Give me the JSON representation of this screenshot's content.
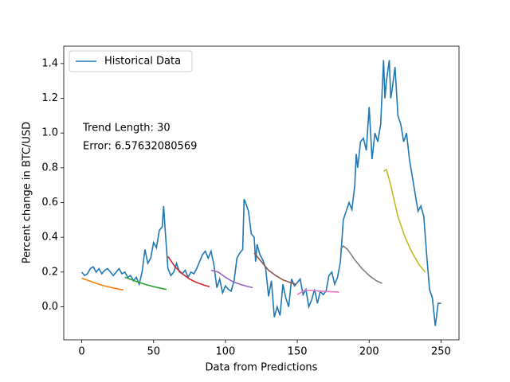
{
  "chart_data": {
    "type": "line",
    "xlabel": "Data from Predictions",
    "ylabel": "Percent change in BTC/USD",
    "annotations": [
      "Trend Length: 30",
      "Error: 6.57632080569"
    ],
    "xlim": [
      -12.5,
      262.5
    ],
    "ylim": [
      -0.19,
      1.5
    ],
    "xticks": [
      0,
      50,
      100,
      150,
      200,
      250
    ],
    "yticks": [
      {
        "value": 0,
        "label": "0.0"
      },
      0.2,
      0.4,
      0.6,
      0.8,
      {
        "value": 1,
        "label": "1.0"
      },
      1.2,
      1.4
    ],
    "legend": "upper left",
    "series": [
      {
        "name": "Historical Data",
        "color": "#1f77b4",
        "x": [
          0,
          2,
          4,
          6,
          8,
          10,
          12,
          14,
          16,
          18,
          20,
          22,
          24,
          26,
          28,
          30,
          32,
          34,
          36,
          38,
          40,
          42,
          44,
          46,
          48,
          50,
          52,
          54,
          56,
          57,
          58,
          60,
          62,
          64,
          66,
          68,
          70,
          72,
          74,
          76,
          78,
          80,
          82,
          84,
          86,
          88,
          90,
          92,
          94,
          96,
          98,
          100,
          102,
          104,
          106,
          108,
          110,
          112,
          113,
          114,
          116,
          118,
          120,
          121,
          122,
          124,
          126,
          128,
          130,
          132,
          134,
          136,
          138,
          140,
          142,
          144,
          146,
          148,
          150,
          152,
          154,
          156,
          158,
          160,
          162,
          164,
          166,
          168,
          170,
          172,
          174,
          176,
          178,
          180,
          182,
          184,
          186,
          188,
          190,
          191,
          192,
          194,
          196,
          198,
          200,
          202,
          204,
          206,
          208,
          210,
          211,
          212,
          214,
          215,
          216,
          218,
          220,
          222,
          224,
          226,
          228,
          230,
          232,
          234,
          236,
          238,
          240,
          242,
          244,
          246,
          248,
          250
        ],
        "values": [
          0.2,
          0.18,
          0.19,
          0.22,
          0.23,
          0.2,
          0.22,
          0.19,
          0.21,
          0.22,
          0.2,
          0.18,
          0.2,
          0.22,
          0.19,
          0.2,
          0.17,
          0.18,
          0.15,
          0.17,
          0.13,
          0.2,
          0.33,
          0.25,
          0.28,
          0.37,
          0.34,
          0.44,
          0.46,
          0.58,
          0.45,
          0.22,
          0.18,
          0.2,
          0.25,
          0.2,
          0.19,
          0.21,
          0.17,
          0.2,
          0.19,
          0.22,
          0.26,
          0.3,
          0.32,
          0.28,
          0.32,
          0.24,
          0.11,
          0.16,
          0.08,
          0.12,
          0.1,
          0.09,
          0.15,
          0.28,
          0.31,
          0.33,
          0.62,
          0.6,
          0.55,
          0.42,
          0.4,
          0.26,
          0.36,
          0.3,
          0.27,
          0.22,
          0.06,
          0.15,
          -0.06,
          0.0,
          -0.05,
          0.13,
          0.05,
          0.0,
          0.16,
          0.12,
          0.14,
          0.16,
          0.07,
          0.1,
          0.0,
          0.04,
          0.1,
          0.02,
          0.09,
          0.07,
          0.09,
          0.18,
          0.2,
          0.13,
          0.17,
          0.26,
          0.5,
          0.55,
          0.6,
          0.56,
          0.7,
          0.88,
          0.8,
          0.95,
          0.97,
          0.9,
          1.15,
          0.85,
          1.0,
          0.95,
          1.05,
          1.42,
          1.2,
          1.3,
          1.42,
          1.2,
          1.25,
          1.38,
          1.1,
          1.05,
          0.95,
          1.0,
          0.85,
          0.75,
          0.65,
          0.55,
          0.58,
          0.52,
          0.3,
          0.1,
          0.05,
          -0.11,
          0.02,
          0.02
        ]
      },
      {
        "color": "#ff7f0e",
        "x": [
          0,
          5,
          10,
          15,
          20,
          25,
          29
        ],
        "values": [
          0.165,
          0.15,
          0.135,
          0.122,
          0.112,
          0.103,
          0.097
        ]
      },
      {
        "color": "#2ca02c",
        "x": [
          30,
          35,
          40,
          45,
          50,
          55,
          59
        ],
        "values": [
          0.17,
          0.155,
          0.14,
          0.127,
          0.116,
          0.107,
          0.1
        ]
      },
      {
        "color": "#d62728",
        "x": [
          60,
          65,
          70,
          75,
          80,
          85,
          89
        ],
        "values": [
          0.29,
          0.23,
          0.19,
          0.16,
          0.14,
          0.125,
          0.115
        ]
      },
      {
        "color": "#9467bd",
        "x": [
          90,
          95,
          100,
          105,
          110,
          115,
          119
        ],
        "values": [
          0.21,
          0.2,
          0.17,
          0.145,
          0.13,
          0.118,
          0.11
        ]
      },
      {
        "color": "#8c564b",
        "x": [
          120,
          125,
          130,
          135,
          140,
          145,
          149
        ],
        "values": [
          0.31,
          0.26,
          0.21,
          0.18,
          0.155,
          0.14,
          0.13
        ]
      },
      {
        "color": "#e377c2",
        "x": [
          150,
          155,
          160,
          165,
          170,
          175,
          179
        ],
        "values": [
          0.07,
          0.095,
          0.095,
          0.09,
          0.088,
          0.086,
          0.085
        ]
      },
      {
        "color": "#7f7f7f",
        "x": [
          180,
          182,
          185,
          190,
          195,
          200,
          205,
          209
        ],
        "values": [
          0.33,
          0.35,
          0.33,
          0.27,
          0.22,
          0.18,
          0.15,
          0.135
        ]
      },
      {
        "color": "#bcbd22",
        "x": [
          210,
          212,
          215,
          220,
          225,
          230,
          235,
          239
        ],
        "values": [
          0.78,
          0.79,
          0.7,
          0.52,
          0.4,
          0.31,
          0.24,
          0.2
        ]
      }
    ]
  }
}
